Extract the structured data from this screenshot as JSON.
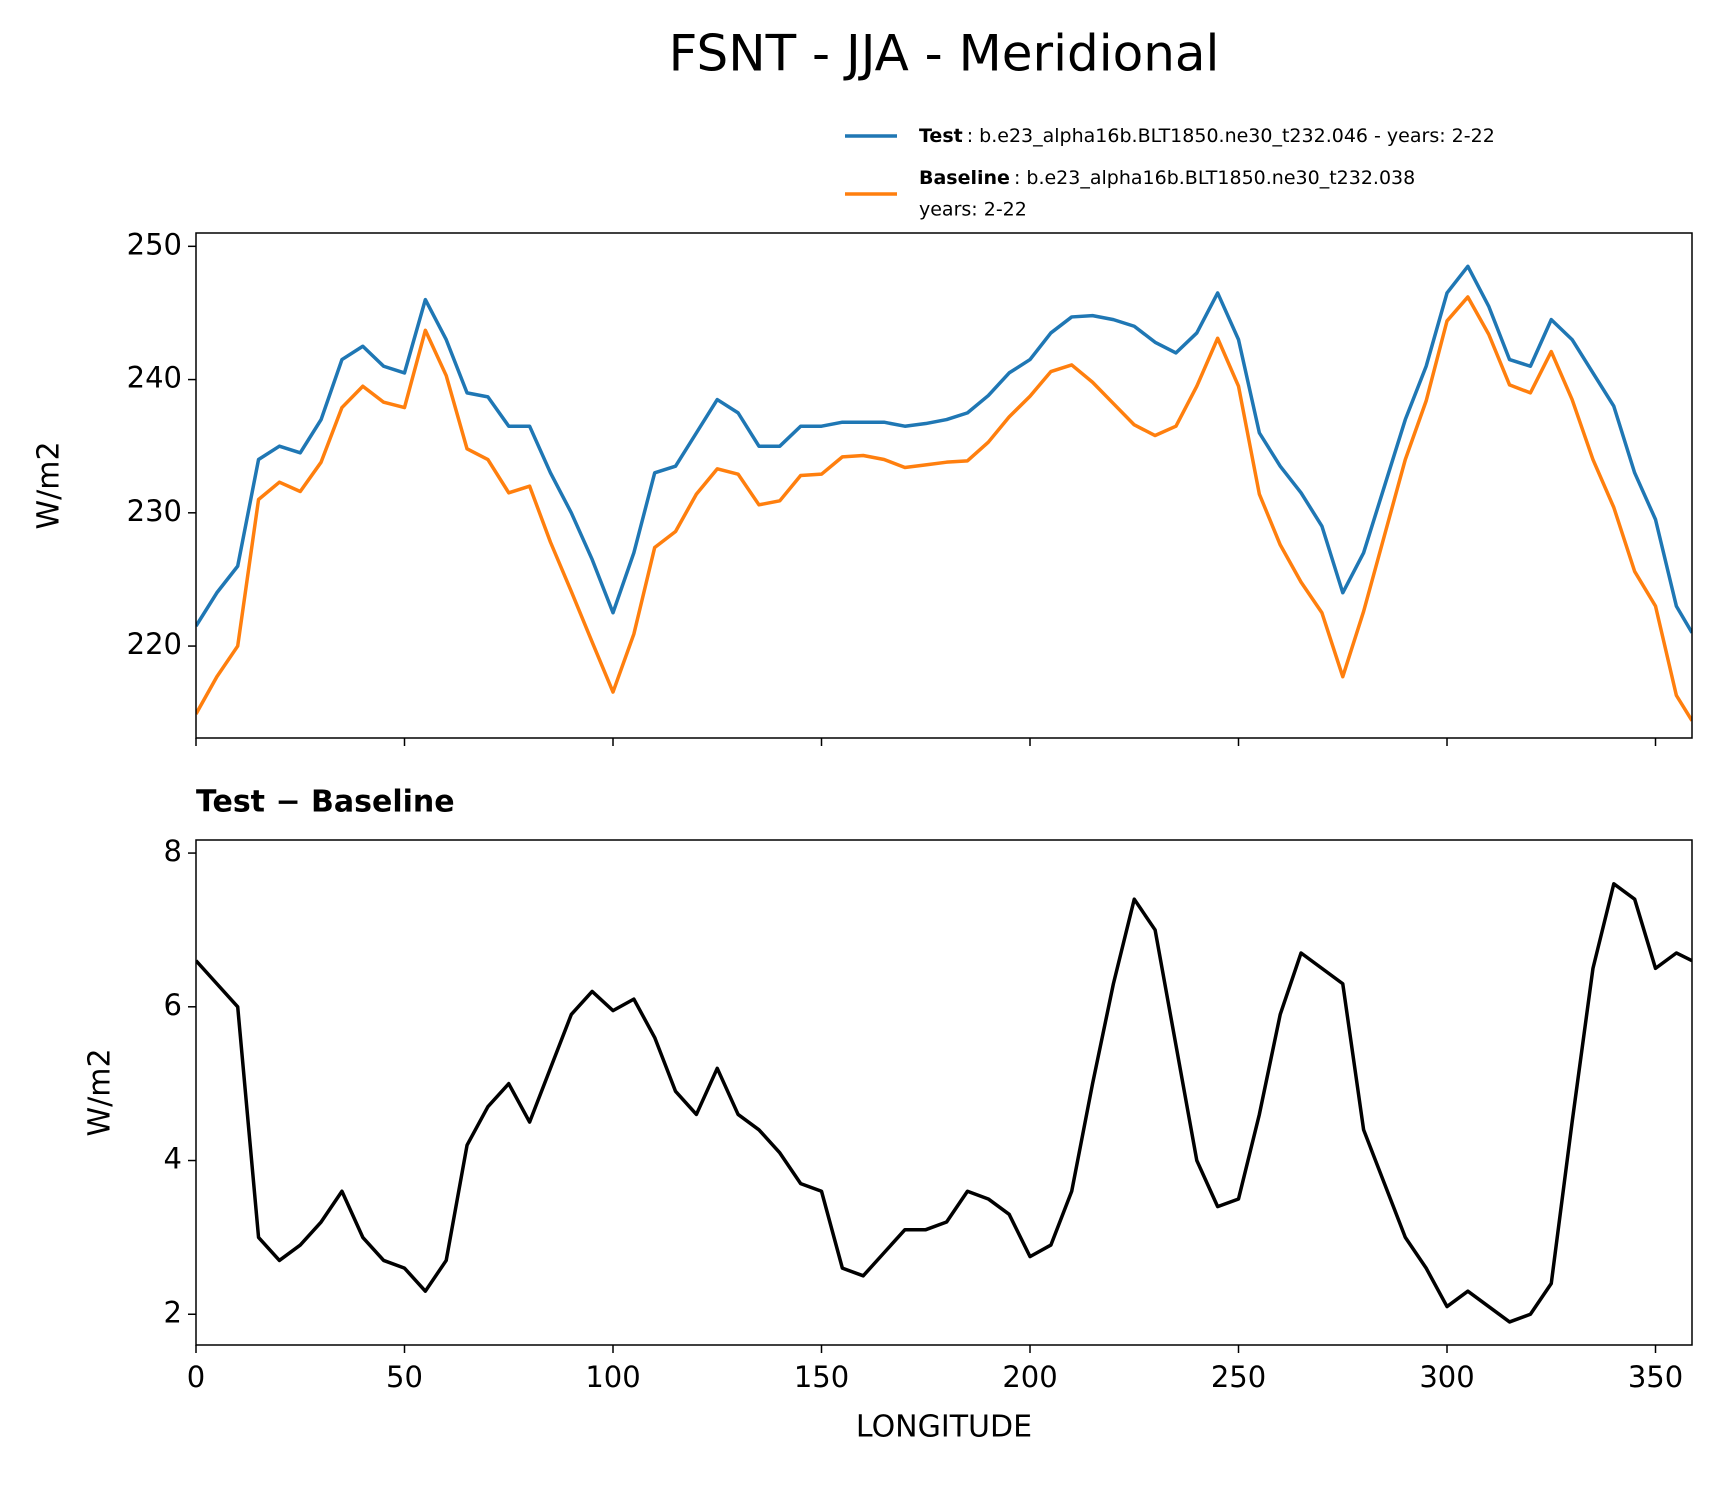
{
  "chart_data": [
    {
      "type": "line",
      "title": "FSNT - JJA - Meridional",
      "ylabel": "W/m2",
      "x": [
        0,
        5,
        10,
        15,
        20,
        25,
        30,
        35,
        40,
        45,
        50,
        55,
        60,
        65,
        70,
        75,
        80,
        85,
        90,
        95,
        100,
        105,
        110,
        115,
        120,
        125,
        130,
        135,
        140,
        145,
        150,
        155,
        160,
        165,
        170,
        175,
        180,
        185,
        190,
        195,
        200,
        205,
        210,
        215,
        220,
        225,
        230,
        235,
        240,
        245,
        250,
        255,
        260,
        265,
        270,
        275,
        280,
        285,
        290,
        295,
        300,
        305,
        310,
        315,
        320,
        325,
        330,
        335,
        340,
        345,
        350,
        355,
        358.75
      ],
      "series": [
        {
          "name": "Test",
          "description": [
            ": b.e23_alpha16b.BLT1850.ne30_t232.046 - years: 2-22"
          ],
          "color": "#1f77b4",
          "values": [
            221.5,
            224,
            226,
            234,
            235,
            234.5,
            237,
            241.5,
            242.5,
            241,
            240.5,
            246,
            243,
            239,
            238.7,
            236.5,
            236.5,
            233,
            230,
            226.5,
            222.5,
            227,
            233,
            233.5,
            236,
            238.5,
            237.5,
            235,
            235,
            236.5,
            236.5,
            236.8,
            236.8,
            236.8,
            236.5,
            236.7,
            237,
            237.5,
            238.8,
            240.5,
            241.5,
            243.5,
            244.7,
            244.8,
            244.5,
            244,
            242.8,
            242,
            243.5,
            246.5,
            243,
            236,
            233.5,
            231.5,
            229,
            224,
            227,
            232,
            237,
            241,
            246.5,
            248.5,
            245.5,
            241.5,
            241,
            244.5,
            243,
            240.5,
            238,
            233,
            229.5,
            223,
            221
          ]
        },
        {
          "name": "Baseline",
          "description": [
            ": b.e23_alpha16b.BLT1850.ne30_t232.038",
            "years: 2-22"
          ],
          "color": "#ff7f0e",
          "values": [
            214.9,
            217.7,
            220,
            231,
            232.3,
            231.6,
            233.8,
            237.9,
            239.5,
            238.3,
            237.9,
            243.7,
            240.3,
            234.8,
            234,
            231.5,
            232,
            227.8,
            224.1,
            220.3,
            216.55,
            220.9,
            227.4,
            228.6,
            231.4,
            233.3,
            232.9,
            230.6,
            230.9,
            232.8,
            232.9,
            234.2,
            234.3,
            234,
            233.4,
            233.6,
            233.8,
            233.9,
            235.3,
            237.2,
            238.75,
            240.6,
            241.1,
            239.8,
            238.2,
            236.6,
            235.8,
            236.5,
            239.5,
            243.1,
            239.5,
            231.4,
            227.6,
            224.8,
            222.5,
            217.7,
            222.6,
            228.3,
            234,
            238.4,
            244.4,
            246.2,
            243.4,
            239.6,
            239,
            242.1,
            238.5,
            234,
            230.4,
            225.6,
            223,
            216.3,
            214.4
          ]
        }
      ],
      "xlim": [
        0,
        358.75
      ],
      "xticks": [
        0,
        50,
        100,
        150,
        200,
        250,
        300,
        350
      ],
      "ylim": [
        213.1,
        251
      ],
      "yticks": [
        220,
        230,
        240,
        250
      ]
    },
    {
      "type": "line",
      "title": "Test − Baseline",
      "ylabel": "W/m2",
      "xlabel": "LONGITUDE",
      "x": [
        0,
        5,
        10,
        15,
        20,
        25,
        30,
        35,
        40,
        45,
        50,
        55,
        60,
        65,
        70,
        75,
        80,
        85,
        90,
        95,
        100,
        105,
        110,
        115,
        120,
        125,
        130,
        135,
        140,
        145,
        150,
        155,
        160,
        165,
        170,
        175,
        180,
        185,
        190,
        195,
        200,
        205,
        210,
        215,
        220,
        225,
        230,
        235,
        240,
        245,
        250,
        255,
        260,
        265,
        270,
        275,
        280,
        285,
        290,
        295,
        300,
        305,
        310,
        315,
        320,
        325,
        330,
        335,
        340,
        345,
        350,
        355,
        358.75
      ],
      "series": [
        {
          "color": "#000000",
          "values": [
            6.6,
            6.3,
            6.0,
            3.0,
            2.7,
            2.9,
            3.2,
            3.6,
            3.0,
            2.7,
            2.6,
            2.3,
            2.7,
            4.2,
            4.7,
            5.0,
            4.5,
            5.2,
            5.9,
            6.2,
            5.95,
            6.1,
            5.6,
            4.9,
            4.6,
            5.2,
            4.6,
            4.4,
            4.1,
            3.7,
            3.6,
            2.6,
            2.5,
            2.8,
            3.1,
            3.1,
            3.2,
            3.6,
            3.5,
            3.3,
            2.75,
            2.9,
            3.6,
            5.0,
            6.3,
            7.4,
            7.0,
            5.5,
            4.0,
            3.4,
            3.5,
            4.6,
            5.9,
            6.7,
            6.5,
            6.3,
            4.4,
            3.7,
            3.0,
            2.6,
            2.1,
            2.3,
            2.1,
            1.9,
            2.0,
            2.4,
            4.5,
            6.5,
            7.6,
            7.4,
            6.5,
            6.7,
            6.6
          ]
        }
      ],
      "xlim": [
        0,
        358.75
      ],
      "xticks": [
        0,
        50,
        100,
        150,
        200,
        250,
        300,
        350
      ],
      "ylim": [
        1.6,
        8.17
      ],
      "yticks": [
        2,
        4,
        6,
        8
      ]
    }
  ]
}
